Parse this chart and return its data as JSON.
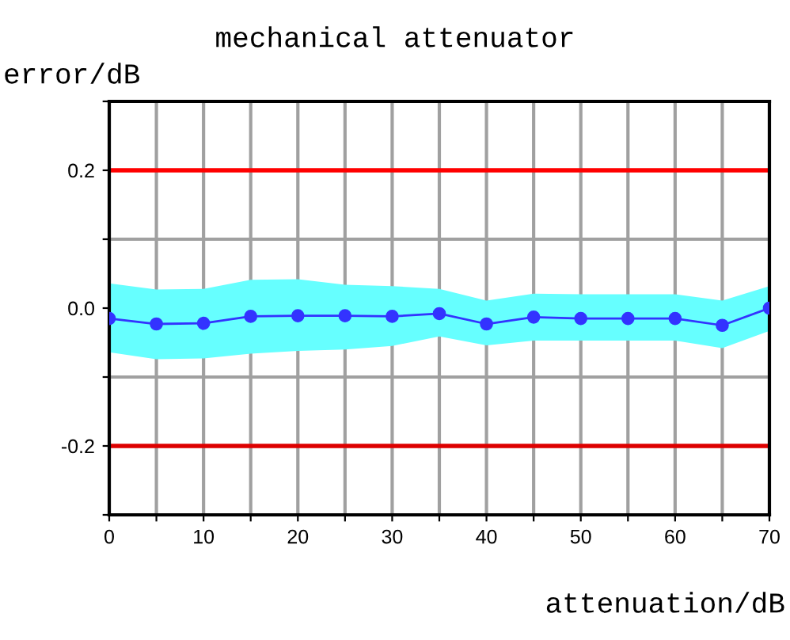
{
  "chart_data": {
    "type": "line",
    "title": "mechanical attenuator",
    "xlabel": "attenuation/dB",
    "ylabel": "error/dB",
    "x": [
      0,
      5,
      10,
      15,
      20,
      25,
      30,
      35,
      40,
      45,
      50,
      55,
      60,
      65,
      70
    ],
    "series": [
      {
        "color": "#3333ff",
        "values": [
          -0.015,
          -0.023,
          -0.022,
          -0.012,
          -0.011,
          -0.011,
          -0.012,
          -0.008,
          -0.023,
          -0.013,
          -0.015,
          -0.015,
          -0.015,
          -0.025,
          0.0
        ],
        "upper": [
          0.036,
          0.027,
          0.028,
          0.041,
          0.042,
          0.034,
          0.032,
          0.028,
          0.011,
          0.021,
          0.02,
          0.02,
          0.02,
          0.011,
          0.032
        ],
        "lower": [
          -0.064,
          -0.074,
          -0.073,
          -0.066,
          -0.062,
          -0.06,
          -0.055,
          -0.041,
          -0.054,
          -0.047,
          -0.047,
          -0.047,
          -0.047,
          -0.058,
          -0.033
        ]
      }
    ],
    "xlim": [
      0,
      70
    ],
    "ylim": [
      -0.3,
      0.3
    ],
    "xticks": [
      0,
      {
        "value": 5,
        "label": null
      },
      10,
      {
        "value": 15,
        "label": null
      },
      20,
      {
        "value": 25,
        "label": null
      },
      30,
      {
        "value": 35,
        "label": null
      },
      40,
      {
        "value": 45,
        "label": null
      },
      50,
      {
        "value": 55,
        "label": null
      },
      60,
      {
        "value": 65,
        "label": null
      },
      70
    ],
    "yticks": [
      {
        "value": -0.3,
        "label": null
      },
      {
        "value": -0.2,
        "label": "-0.2"
      },
      {
        "value": -0.1,
        "label": null
      },
      {
        "value": 0.0,
        "label": "0.0"
      },
      {
        "value": 0.1,
        "label": null
      },
      {
        "value": 0.2,
        "label": "0.2"
      },
      {
        "value": 0.3,
        "label": null
      }
    ],
    "ref_lines": [
      {
        "axis": "y",
        "value": 0.2,
        "color": "#ff0000"
      },
      {
        "axis": "y",
        "value": -0.2,
        "color": "#dd0000"
      }
    ],
    "grid": true,
    "marker": "circle",
    "line_style": "solid",
    "legend": false
  }
}
